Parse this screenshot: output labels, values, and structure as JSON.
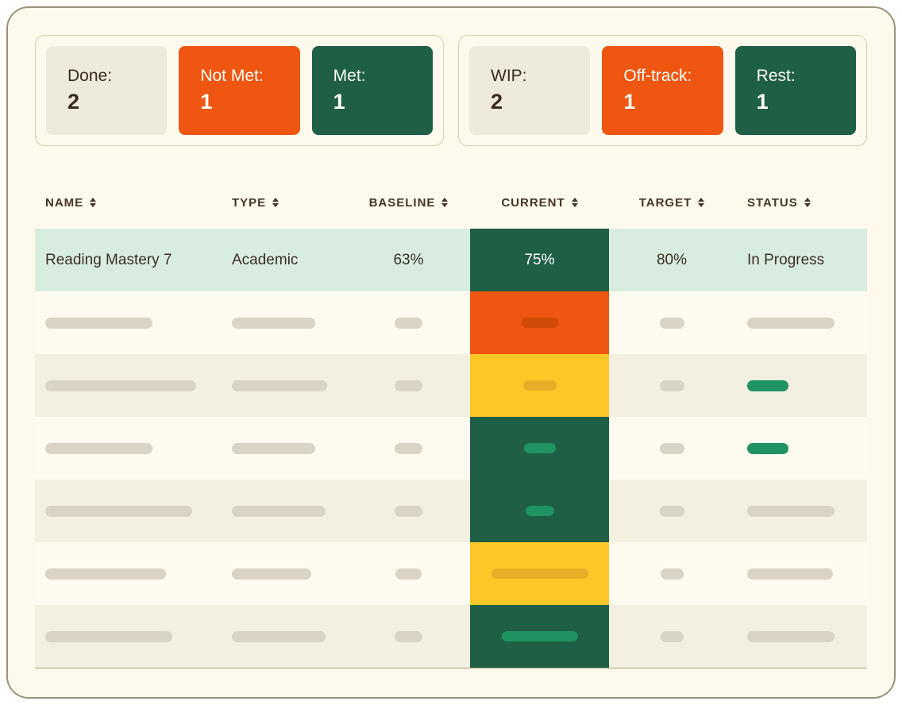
{
  "colors": {
    "page_bg": "#ffffff",
    "panel_bg": "#fdf9ec",
    "panel_border": "#9a9379",
    "group_border": "#d8cfae",
    "neutral_card_bg": "#efebdc",
    "danger_orange": "#ee5611",
    "success_green_dark": "#1e5f46",
    "warning_yellow": "#ffc728",
    "mint_row": "#d9ece0",
    "row_light": "#fdfaf0",
    "row_alt": "#f3efe1",
    "skeleton_gray": "#d9d4c5",
    "pill_orange_dark": "#d04b08",
    "pill_yellow_dark": "#e9ae27",
    "pill_green": "#1f9362",
    "header_text": "#453527",
    "body_text": "#3b2f26",
    "table_bottom_border": "#aba387"
  },
  "summary": {
    "groups": [
      {
        "name": "completion-summary",
        "cards": [
          {
            "label": "Done:",
            "value": "2",
            "variant": "neutral"
          },
          {
            "label": "Not Met:",
            "value": "1",
            "variant": "danger"
          },
          {
            "label": "Met:",
            "value": "1",
            "variant": "success"
          }
        ]
      },
      {
        "name": "progress-summary",
        "cards": [
          {
            "label": "WIP:",
            "value": "2",
            "variant": "neutral"
          },
          {
            "label": "Off-track:",
            "value": "1",
            "variant": "danger"
          },
          {
            "label": "Rest:",
            "value": "1",
            "variant": "success"
          }
        ]
      }
    ]
  },
  "table": {
    "columns": [
      {
        "id": "name",
        "label": "NAME",
        "sortable": true
      },
      {
        "id": "type",
        "label": "TYPE",
        "sortable": true
      },
      {
        "id": "baseline",
        "label": "BASELINE",
        "sortable": true
      },
      {
        "id": "current",
        "label": "CURRENT",
        "sortable": true
      },
      {
        "id": "target",
        "label": "TARGET",
        "sortable": true
      },
      {
        "id": "status",
        "label": "STATUS",
        "sortable": true
      }
    ],
    "rows": [
      {
        "kind": "data",
        "row_bg": "mint",
        "name": "Reading Mastery 7",
        "type": "Academic",
        "baseline": "63%",
        "current": "75%",
        "target": "80%",
        "status": "In Progress",
        "current_variant": "green"
      },
      {
        "kind": "skeleton",
        "row_bg": "light",
        "name_w": 135,
        "type_w": 105,
        "baseline_w": 35,
        "current_variant": "orange",
        "current_pill_w": 46,
        "target_w": 31,
        "status_variant": "gray",
        "status_w": 110
      },
      {
        "kind": "skeleton",
        "row_bg": "alt",
        "name_w": 190,
        "type_w": 120,
        "baseline_w": 35,
        "current_variant": "yellow",
        "current_pill_w": 42,
        "target_w": 31,
        "status_variant": "green",
        "status_w": 52
      },
      {
        "kind": "skeleton",
        "row_bg": "light",
        "name_w": 135,
        "type_w": 105,
        "baseline_w": 35,
        "current_variant": "green",
        "current_pill_w": 40,
        "target_w": 31,
        "status_variant": "green",
        "status_w": 52
      },
      {
        "kind": "skeleton",
        "row_bg": "alt",
        "name_w": 185,
        "type_w": 118,
        "baseline_w": 35,
        "current_variant": "green",
        "current_pill_w": 36,
        "target_w": 31,
        "status_variant": "gray",
        "status_w": 110
      },
      {
        "kind": "skeleton",
        "row_bg": "light",
        "name_w": 152,
        "type_w": 100,
        "baseline_w": 33,
        "current_variant": "yellow",
        "current_pill_w": 122,
        "target_w": 29,
        "status_variant": "gray",
        "status_w": 108
      },
      {
        "kind": "skeleton",
        "row_bg": "alt",
        "name_w": 160,
        "type_w": 118,
        "baseline_w": 35,
        "current_variant": "green",
        "current_pill_w": 96,
        "target_w": 29,
        "status_variant": "gray",
        "status_w": 110
      }
    ]
  }
}
